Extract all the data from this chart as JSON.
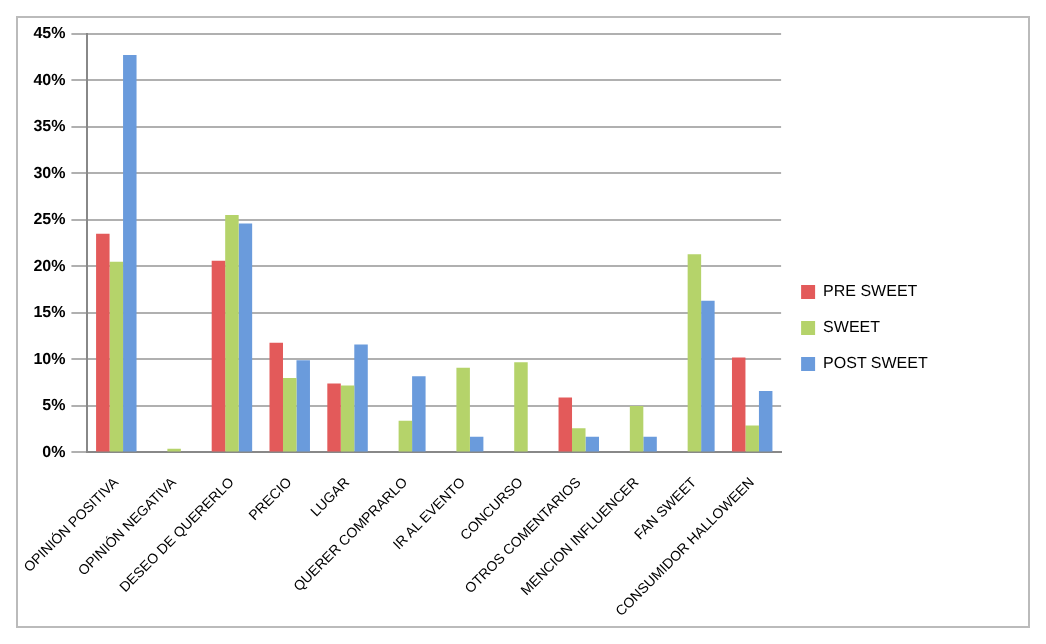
{
  "chart_data": {
    "type": "bar",
    "categories": [
      "OPINIÓN POSITIVA",
      "OPINIÓN NEGATIVA",
      "DESEO DE QUERERLO",
      "PRECIO",
      "LUGAR",
      "QUERER COMPRARLO",
      "IR AL EVENTO",
      "CONCURSO",
      "OTROS COMENTARIOS",
      "MENCION INFLUENCER",
      "FAN SWEET",
      "CONSUMIDOR HALLOWEEN"
    ],
    "series": [
      {
        "name": "PRE SWEET",
        "color": "#e35a5a",
        "values": [
          23.5,
          0,
          20.6,
          11.8,
          7.4,
          0,
          0,
          0,
          5.9,
          0,
          0,
          10.2
        ]
      },
      {
        "name": "SWEET",
        "color": "#b5d36a",
        "values": [
          20.5,
          0.4,
          25.5,
          8.0,
          7.2,
          3.4,
          9.1,
          9.7,
          2.6,
          5.0,
          21.3,
          2.9
        ]
      },
      {
        "name": "POST SWEET",
        "color": "#6a9bdc",
        "values": [
          42.7,
          0,
          24.6,
          9.9,
          11.6,
          8.2,
          1.7,
          0,
          1.7,
          1.7,
          16.3,
          6.6
        ]
      }
    ],
    "ylim": [
      0,
      45
    ],
    "yticks": [
      {
        "value": 0,
        "label": "0%"
      },
      {
        "value": 5,
        "label": "5%"
      },
      {
        "value": 10,
        "label": "10%"
      },
      {
        "value": 15,
        "label": "15%"
      },
      {
        "value": 20,
        "label": "20%"
      },
      {
        "value": 25,
        "label": "25%"
      },
      {
        "value": 30,
        "label": "30%"
      },
      {
        "value": 35,
        "label": "35%"
      },
      {
        "value": 40,
        "label": "40%"
      },
      {
        "value": 45,
        "label": "45%"
      }
    ],
    "grid": "y",
    "legend": "right"
  }
}
